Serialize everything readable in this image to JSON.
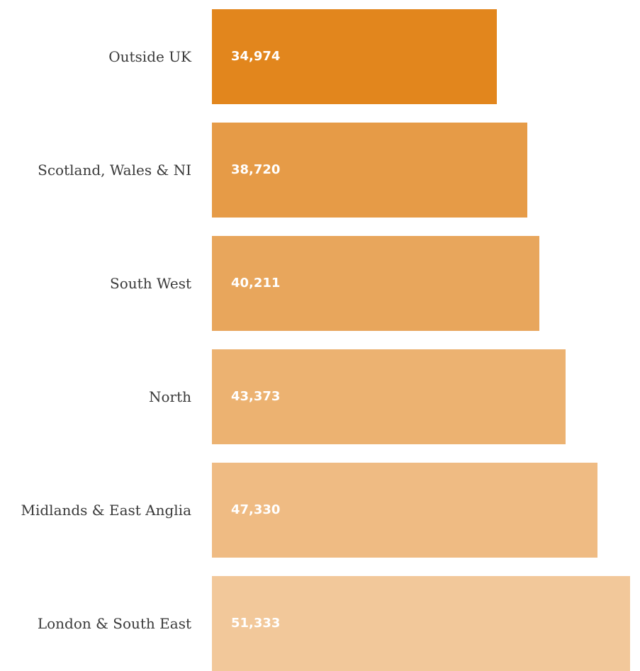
{
  "chart_data": {
    "type": "bar",
    "orientation": "horizontal",
    "categories": [
      "Outside UK",
      "Scotland, Wales & NI",
      "South West",
      "North",
      "Midlands & East Anglia",
      "London & South East"
    ],
    "values": [
      34974,
      38720,
      40211,
      43373,
      47330,
      51333
    ],
    "value_labels": [
      "34,974",
      "38,720",
      "40,211",
      "43,373",
      "47,330",
      "51,333"
    ],
    "bar_colors": [
      "#e2861d",
      "#e69b47",
      "#e8a65c",
      "#ecb271",
      "#efbb83",
      "#f2c89a"
    ],
    "title": "",
    "xlabel": "",
    "ylabel": "",
    "grid": false,
    "legend": "none"
  }
}
